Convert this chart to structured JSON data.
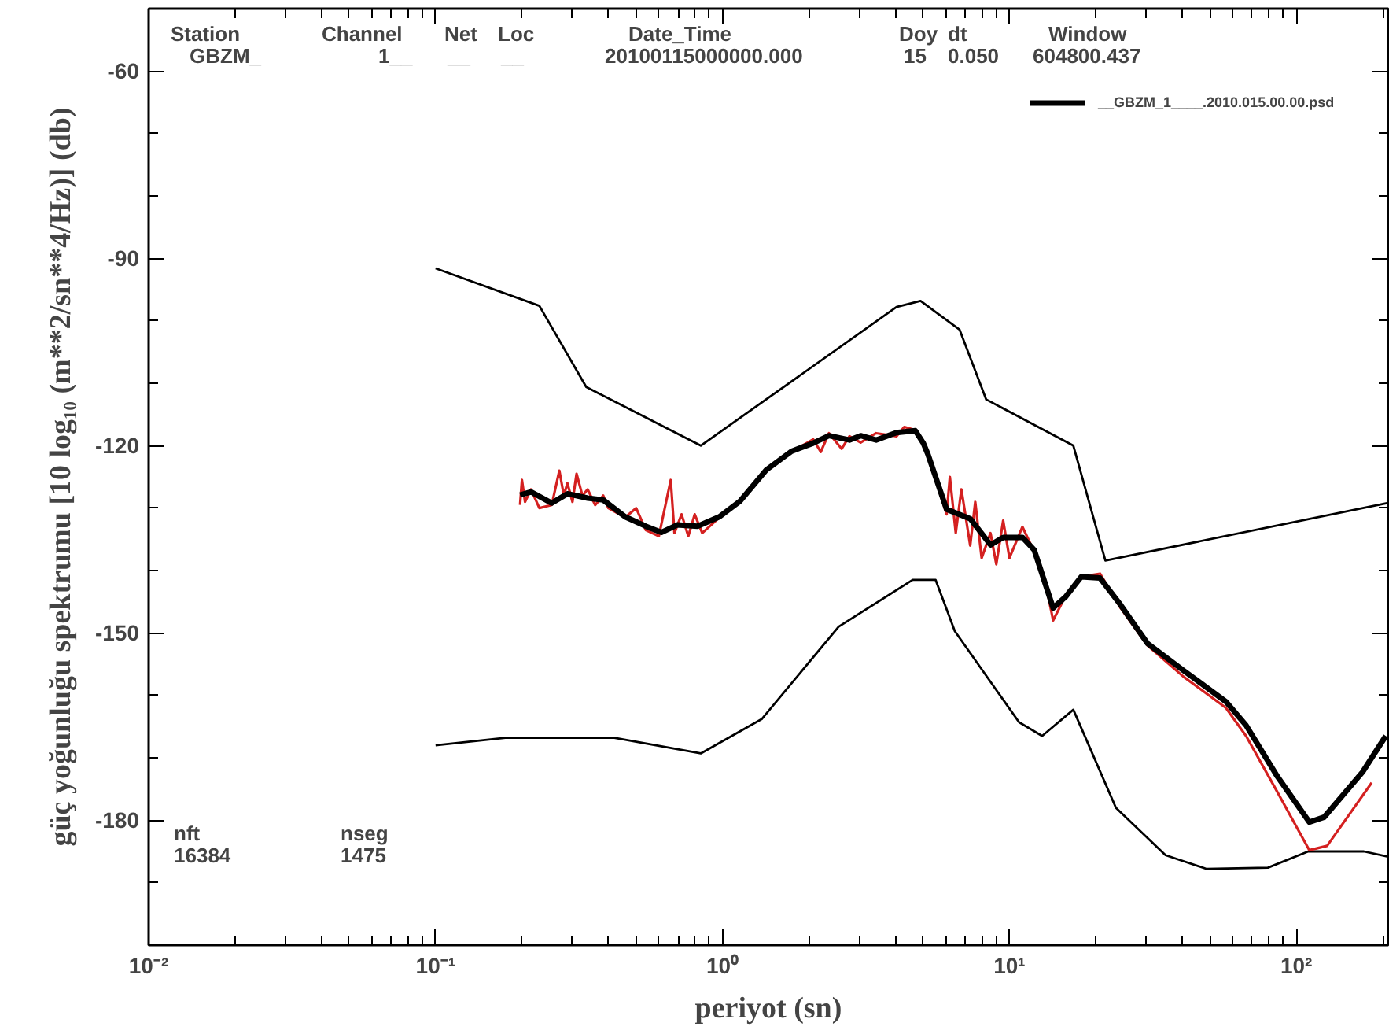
{
  "chart_data": {
    "type": "line",
    "xlabel": "periyot (sn)",
    "ylabel": "güç yoğunluğu spektrumu [10 log₁₀ (m**2/sn**4/Hz)] (db)",
    "log": "x",
    "xlim": [
      0.01,
      209
    ],
    "ylim": [
      -200,
      -50
    ],
    "xticks": [
      {
        "value": 0.01,
        "label": "10⁻²"
      },
      {
        "value": 0.1,
        "label": "10⁻¹"
      },
      {
        "value": 1,
        "label": "10⁰"
      },
      {
        "value": 10,
        "label": "10¹"
      },
      {
        "value": 100,
        "label": "10²"
      }
    ],
    "yticks": [
      -60,
      -90,
      -120,
      -150,
      -180
    ],
    "grid": false,
    "legend": "top right",
    "marker": "none",
    "line_style": "solid",
    "annotations": [
      "Station",
      "GBZM_",
      "Channel",
      "1__",
      "Net",
      "__",
      "Loc",
      "__",
      "Date_Time",
      "20100115000000.000",
      "Doy",
      "15",
      "dt",
      "0.050",
      "Window",
      "604800.437",
      "nft",
      "16384",
      "nseg",
      "1475"
    ],
    "series": [
      {
        "color": "#000000",
        "x": [
          0.1,
          0.23,
          0.335,
          0.84,
          4.04,
          4.9,
          6.7,
          8.3,
          16.7,
          21.6,
          207
        ],
        "values": [
          -91.6,
          -97.6,
          -110.6,
          -120,
          -97.8,
          -96.8,
          -101.4,
          -112.6,
          -120,
          -138.4,
          -129.2
        ]
      },
      {
        "color": "#000000",
        "x": [
          0.1,
          0.175,
          0.42,
          0.84,
          1.37,
          2.54,
          4.6,
          5.53,
          6.45,
          10.8,
          13.0,
          16.7,
          23.5,
          35,
          48.7,
          79.6,
          110,
          172,
          207
        ],
        "values": [
          -168,
          -166.8,
          -166.8,
          -169.3,
          -163.8,
          -149,
          -141.5,
          -141.5,
          -149.7,
          -164.3,
          -166.5,
          -162.3,
          -178,
          -185.6,
          -187.8,
          -187.6,
          -185,
          -185,
          -185.8
        ]
      },
      {
        "color": "#d42020",
        "x": [
          0.197,
          0.2,
          0.205,
          0.215,
          0.23,
          0.254,
          0.27,
          0.28,
          0.288,
          0.3,
          0.31,
          0.325,
          0.339,
          0.36,
          0.384,
          0.4,
          0.458,
          0.5,
          0.54,
          0.6,
          0.66,
          0.68,
          0.72,
          0.76,
          0.8,
          0.85,
          0.975,
          1.15,
          1.42,
          1.74,
          2.07,
          2.2,
          2.35,
          2.6,
          2.77,
          3.03,
          3.43,
          4.04,
          4.3,
          4.7,
          5.01,
          5.2,
          6.04,
          6.2,
          6.5,
          6.8,
          7.3,
          7.6,
          8.0,
          8.59,
          9.0,
          9.51,
          10.0,
          11.1,
          12.2,
          13.5,
          14.2,
          15.7,
          17.8,
          20.7,
          24.4,
          30.3,
          40.4,
          56.8,
          66.8,
          85.9,
          111,
          128,
          183
        ],
        "values": [
          -129.5,
          -125.5,
          -129,
          -127,
          -130,
          -129.5,
          -124,
          -128,
          -126,
          -129,
          -124.5,
          -128,
          -127,
          -129.5,
          -128,
          -130,
          -131.5,
          -130,
          -133.5,
          -134.5,
          -125.5,
          -134,
          -131,
          -134.5,
          -131,
          -134,
          -131.5,
          -129,
          -124,
          -121,
          -119,
          -121,
          -118,
          -120.5,
          -118.5,
          -119.5,
          -118,
          -118.5,
          -117,
          -117.5,
          -120,
          -121.5,
          -131,
          -125,
          -134,
          -127,
          -136,
          -129,
          -138,
          -134,
          -139,
          -132,
          -138,
          -133,
          -137,
          -143,
          -148,
          -144,
          -141,
          -140.5,
          -146,
          -152,
          -157,
          -162,
          -166.5,
          -175.5,
          -184.8,
          -184.1,
          -174
        ]
      },
      {
        "name": "__GBZM_1____.2010.015.00.00.psd",
        "color": "#000000",
        "x": [
          0.197,
          0.215,
          0.254,
          0.288,
          0.339,
          0.384,
          0.458,
          0.54,
          0.612,
          0.695,
          0.818,
          0.975,
          1.15,
          1.42,
          1.74,
          2.07,
          2.35,
          2.77,
          3.03,
          3.43,
          4.04,
          4.7,
          5.01,
          5.2,
          6.04,
          7.3,
          8.59,
          9.51,
          11.1,
          12.2,
          14.2,
          15.7,
          17.8,
          20.7,
          24.4,
          30.3,
          40.4,
          56.8,
          66.8,
          85.9,
          111,
          125,
          170,
          205
        ],
        "values": [
          -127.9,
          -127.4,
          -129.2,
          -127.7,
          -128.4,
          -128.7,
          -131.4,
          -132.9,
          -133.9,
          -132.7,
          -132.9,
          -131.4,
          -128.9,
          -123.9,
          -120.9,
          -119.6,
          -118.4,
          -119.1,
          -118.4,
          -119.1,
          -117.9,
          -117.6,
          -119.6,
          -121.4,
          -130.2,
          -131.7,
          -135.9,
          -134.7,
          -134.7,
          -136.7,
          -146.0,
          -144.2,
          -141.0,
          -141.2,
          -145.5,
          -151.7,
          -156.0,
          -161.0,
          -164.8,
          -173.0,
          -180.3,
          -179.5,
          -172.3,
          -166.5
        ]
      }
    ]
  }
}
